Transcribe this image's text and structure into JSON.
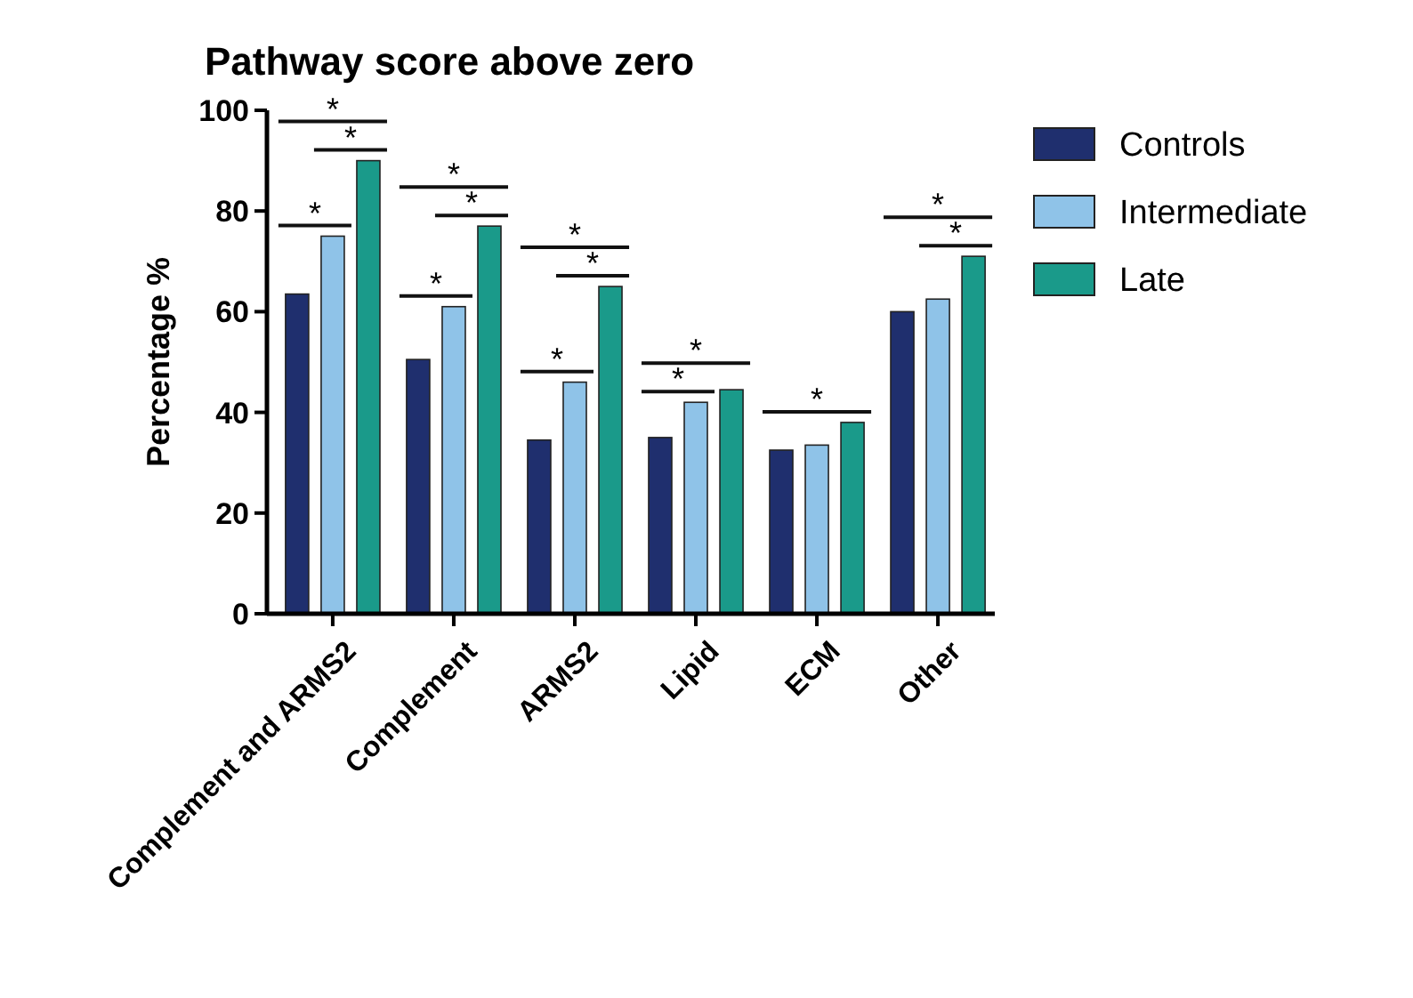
{
  "chart_data": {
    "type": "bar",
    "title": "Pathway score above zero",
    "ylabel": "Percentage %",
    "categories": [
      "Complement and ARMS2",
      "Complement",
      "ARMS2",
      "Lipid",
      "ECM",
      "Other"
    ],
    "series": [
      {
        "name": "Controls",
        "color": "#1f2f6e",
        "values": [
          63.5,
          50.5,
          34.5,
          35,
          32.5,
          60
        ]
      },
      {
        "name": "Intermediate",
        "color": "#8fc3e8",
        "values": [
          75,
          61,
          46,
          42,
          33.5,
          62.5
        ]
      },
      {
        "name": "Late",
        "color": "#1a9a8a",
        "values": [
          90,
          77,
          65,
          44.5,
          38,
          71
        ]
      }
    ],
    "ylim": [
      0,
      100
    ],
    "yticks": [
      0,
      20,
      40,
      60,
      80,
      100
    ],
    "legend": "right",
    "annotations": [
      "*",
      "*",
      "*",
      "*",
      "*",
      "*",
      "*",
      "*",
      "*",
      "*",
      "*",
      "*",
      "*",
      "*"
    ]
  }
}
